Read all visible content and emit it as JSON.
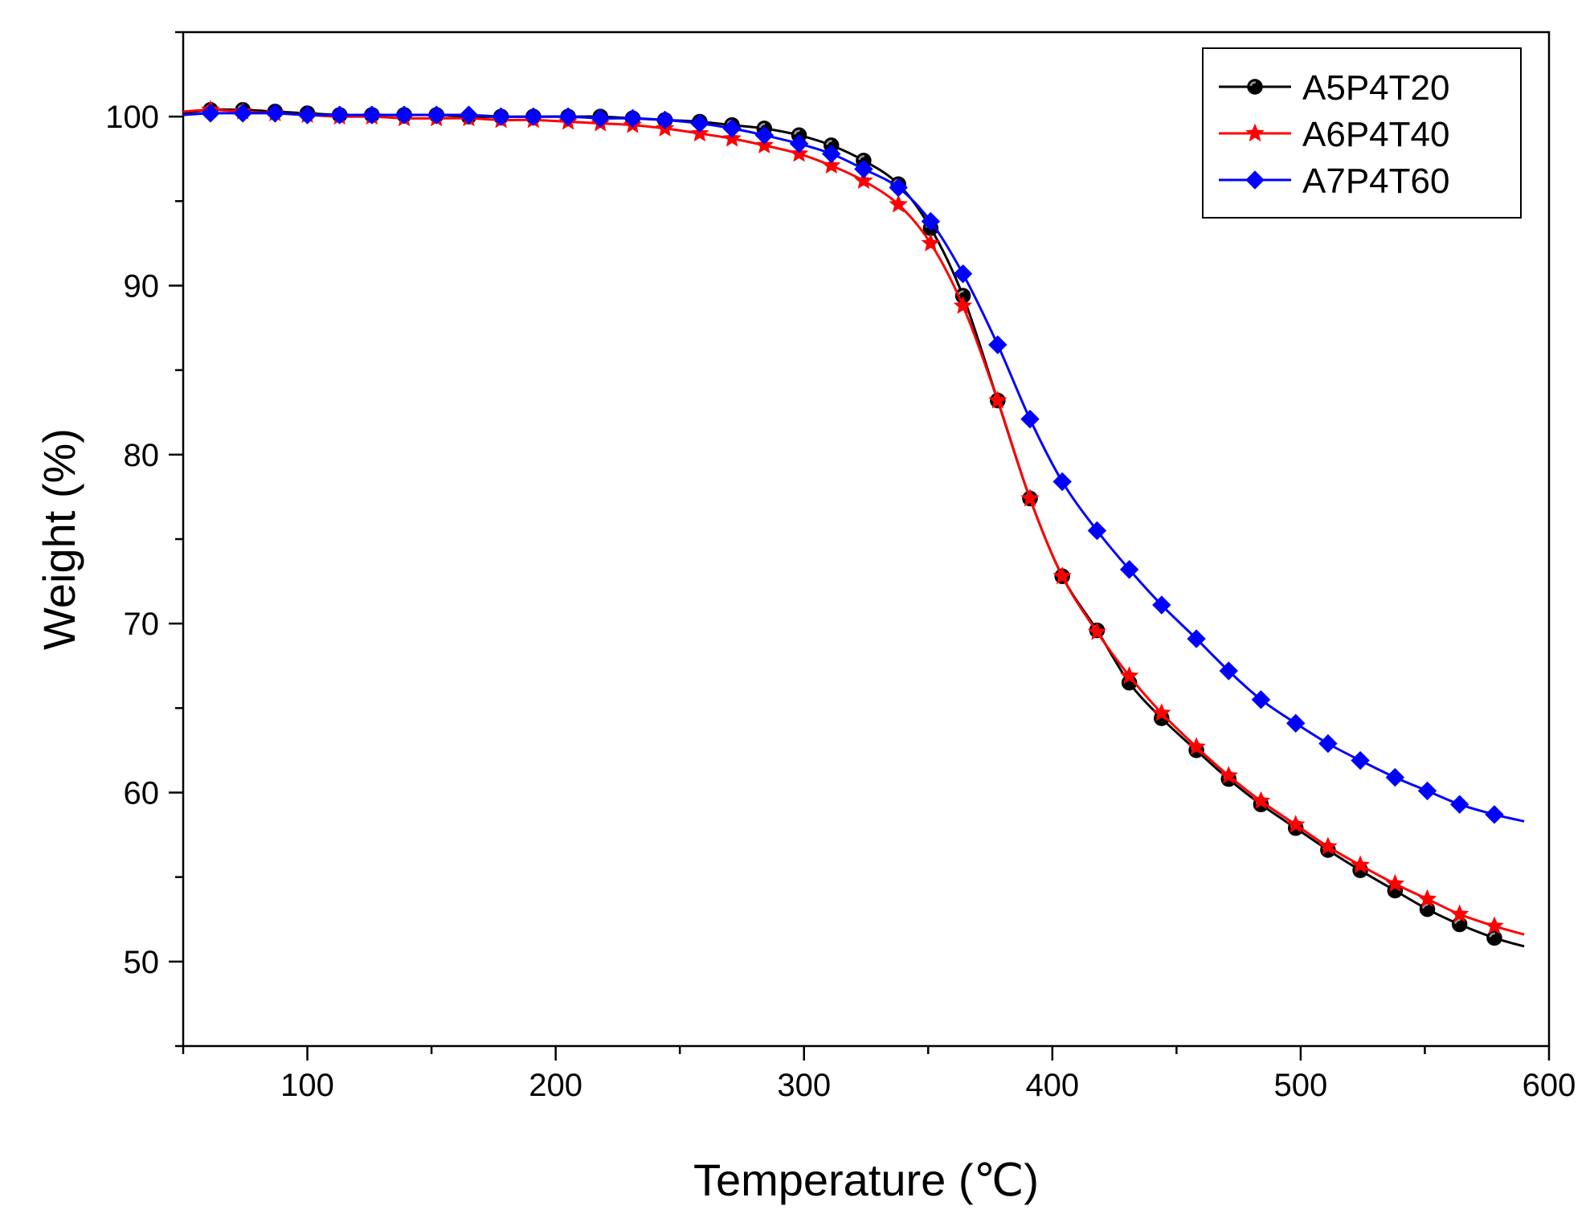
{
  "chart_data": {
    "type": "line",
    "title": "",
    "xlabel": "Temperature (℃)",
    "ylabel": "Weight (%)",
    "xlim": [
      50,
      600
    ],
    "ylim": [
      45,
      105
    ],
    "xticks": [
      100,
      200,
      300,
      400,
      500,
      600
    ],
    "yticks": [
      50,
      60,
      70,
      80,
      90,
      100
    ],
    "xtick_labels": [
      "100",
      "200",
      "300",
      "400",
      "500",
      "600"
    ],
    "ytick_labels": [
      "50",
      "60",
      "70",
      "80",
      "90",
      "100"
    ],
    "grid": false,
    "legend_position": "top-right",
    "series": [
      {
        "name": "A5P4T20",
        "color": "#000000",
        "marker": "circle",
        "x": [
          50,
          61,
          74,
          87,
          100,
          113,
          126,
          139,
          152,
          165,
          178,
          191,
          205,
          218,
          231,
          244,
          258,
          271,
          284,
          298,
          311,
          324,
          338,
          351,
          364,
          378,
          391,
          404,
          418,
          431,
          444,
          458,
          471,
          484,
          498,
          511,
          524,
          538,
          551,
          564,
          578,
          590
        ],
        "y": [
          100.2,
          100.4,
          100.4,
          100.3,
          100.2,
          100.1,
          100.1,
          100.1,
          100.1,
          100.0,
          100.0,
          100.0,
          100.0,
          100.0,
          99.9,
          99.8,
          99.7,
          99.5,
          99.3,
          98.9,
          98.3,
          97.4,
          96.0,
          93.4,
          89.4,
          83.2,
          77.4,
          72.8,
          69.6,
          66.5,
          64.4,
          62.5,
          60.8,
          59.3,
          57.9,
          56.6,
          55.4,
          54.2,
          53.1,
          52.2,
          51.4,
          50.9
        ]
      },
      {
        "name": "A6P4T40",
        "color": "#ff0000",
        "marker": "star",
        "x": [
          50,
          61,
          74,
          87,
          100,
          113,
          126,
          139,
          152,
          165,
          178,
          191,
          205,
          218,
          231,
          244,
          258,
          271,
          284,
          298,
          311,
          324,
          338,
          351,
          364,
          378,
          391,
          404,
          418,
          431,
          444,
          458,
          471,
          484,
          498,
          511,
          524,
          538,
          551,
          564,
          578,
          590
        ],
        "y": [
          100.3,
          100.4,
          100.3,
          100.2,
          100.1,
          100.0,
          100.0,
          99.9,
          99.9,
          99.9,
          99.8,
          99.8,
          99.7,
          99.6,
          99.5,
          99.3,
          99.0,
          98.7,
          98.3,
          97.8,
          97.1,
          96.2,
          94.8,
          92.5,
          88.8,
          83.2,
          77.4,
          72.8,
          69.5,
          66.9,
          64.7,
          62.7,
          61.0,
          59.5,
          58.1,
          56.8,
          55.7,
          54.6,
          53.7,
          52.8,
          52.1,
          51.6
        ]
      },
      {
        "name": "A7P4T60",
        "color": "#0000ff",
        "marker": "diamond",
        "x": [
          50,
          61,
          74,
          87,
          100,
          113,
          126,
          139,
          152,
          165,
          178,
          191,
          205,
          218,
          231,
          244,
          258,
          271,
          284,
          298,
          311,
          324,
          338,
          351,
          364,
          378,
          391,
          404,
          418,
          431,
          444,
          458,
          471,
          484,
          498,
          511,
          524,
          538,
          551,
          564,
          578,
          590
        ],
        "y": [
          100.1,
          100.2,
          100.2,
          100.2,
          100.1,
          100.1,
          100.1,
          100.1,
          100.1,
          100.1,
          100.0,
          100.0,
          100.0,
          99.9,
          99.9,
          99.8,
          99.6,
          99.3,
          98.9,
          98.4,
          97.8,
          96.9,
          95.8,
          93.8,
          90.7,
          86.5,
          82.1,
          78.4,
          75.5,
          73.2,
          71.1,
          69.1,
          67.2,
          65.5,
          64.1,
          62.9,
          61.9,
          60.9,
          60.1,
          59.3,
          58.7,
          58.3
        ]
      }
    ]
  }
}
